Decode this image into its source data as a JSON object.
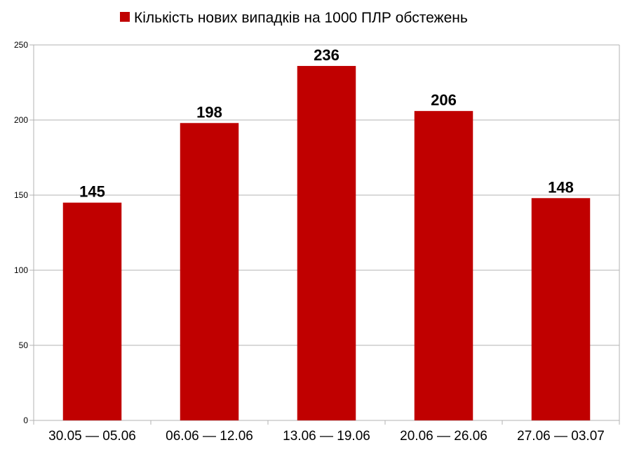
{
  "chart_data": {
    "type": "bar",
    "title": "",
    "xlabel": "",
    "ylabel": "",
    "categories": [
      "30.05 — 05.06",
      "06.06 — 12.06",
      "13.06 — 19.06",
      "20.06 — 26.06",
      "27.06 — 03.07"
    ],
    "series": [
      {
        "name": "Кількість нових випадків на 1000 ПЛР обстежень",
        "values": [
          145,
          198,
          236,
          206,
          148
        ],
        "color": "#c00000"
      }
    ],
    "ylim": [
      0,
      250
    ],
    "yticks": [
      0,
      50,
      100,
      150,
      200,
      250
    ],
    "grid": true,
    "legend_position": "top",
    "data_labels": true,
    "colors": {
      "bar": "#c00000",
      "grid": "#b3b3b3",
      "axis": "#b3b3b3"
    }
  }
}
